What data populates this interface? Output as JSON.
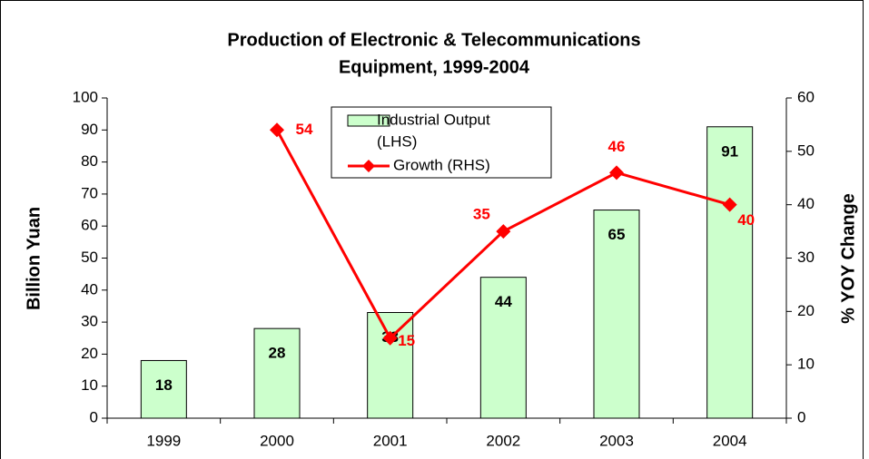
{
  "chart_data": {
    "type": "bar",
    "title": [
      "Production of Electronic & Telecommunications",
      "Equipment, 1999-2004"
    ],
    "ylabel": "Billion Yuan",
    "y2label": "% YOY Change",
    "categories": [
      "1999",
      "2000",
      "2001",
      "2002",
      "2003",
      "2004"
    ],
    "series": [
      {
        "name": [
          "Industrial Output",
          "(LHS)"
        ],
        "type": "bar",
        "color": "#ccffcc",
        "values": [
          18,
          28,
          33,
          44,
          65,
          91
        ]
      },
      {
        "name": "Growth (RHS)",
        "type": "line",
        "axis": "y2",
        "color": "#ff0000",
        "values": [
          null,
          54,
          15,
          35,
          46,
          40
        ]
      }
    ],
    "ylim": [
      0,
      100
    ],
    "yticks": [
      0,
      10,
      20,
      30,
      40,
      50,
      60,
      70,
      80,
      90,
      100
    ],
    "y2lim": [
      0,
      60
    ],
    "y2ticks": [
      0,
      10,
      20,
      30,
      40,
      50,
      60
    ]
  }
}
